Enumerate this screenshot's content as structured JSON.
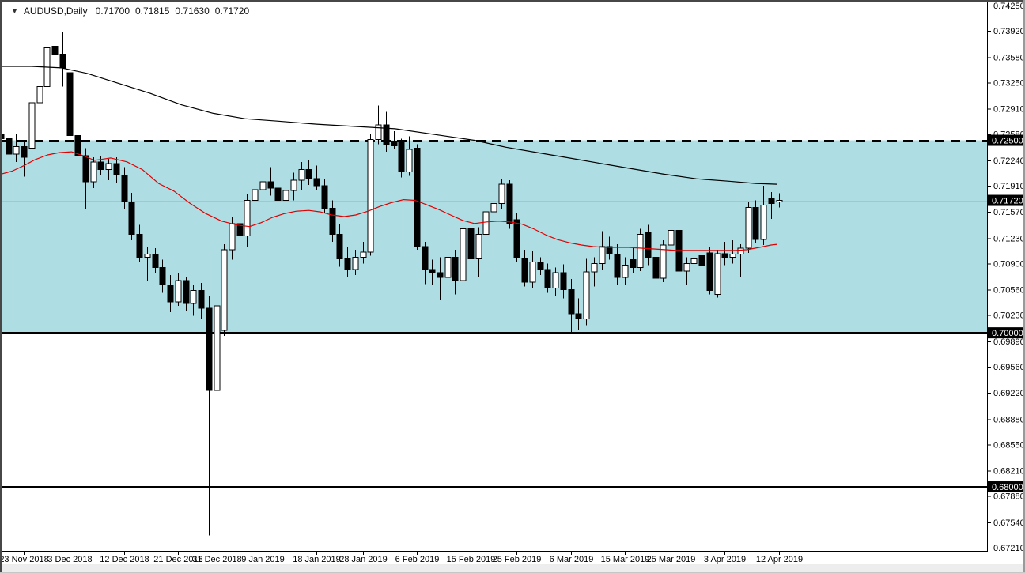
{
  "header": {
    "dropdown_icon": "▼",
    "symbol": "AUDUSD,Daily",
    "open": "0.71700",
    "high": "0.71815",
    "low": "0.71630",
    "close": "0.71720"
  },
  "colors": {
    "background": "#ffffff",
    "band_fill": "#aedee3",
    "bull_body": "#ffffff",
    "bear_body": "#000000",
    "candle_border": "#000000",
    "ma_fast": "#e00000",
    "ma_slow": "#000000",
    "object_line": "#000000",
    "current_price_line": "#bdbdbd",
    "badge_bg": "#000000",
    "badge_text": "#ffffff",
    "axis_text": "#000000",
    "footer": "#ededed"
  },
  "axes": {
    "price_min": 0.6721,
    "price_max": 0.7425,
    "price_ticks": [
      "0.74250",
      "0.73920",
      "0.73580",
      "0.73250",
      "0.72910",
      "0.72580",
      "0.72240",
      "0.71910",
      "0.71570",
      "0.71230",
      "0.70900",
      "0.70560",
      "0.70230",
      "0.69890",
      "0.69560",
      "0.69220",
      "0.68880",
      "0.68550",
      "0.68210",
      "0.67880",
      "0.67540",
      "0.67210"
    ],
    "price_badges": [
      {
        "label": "0.72500",
        "price": 0.725
      },
      {
        "label": "0.71720",
        "price": 0.7172,
        "current": true
      },
      {
        "label": "0.70000",
        "price": 0.7
      },
      {
        "label": "0.68000",
        "price": 0.68
      }
    ],
    "date_ticks": [
      {
        "label": "23 Nov 2018",
        "bar": 3
      },
      {
        "label": "3 Dec 2018",
        "bar": 9
      },
      {
        "label": "12 Dec 2018",
        "bar": 16
      },
      {
        "label": "21 Dec 2018",
        "bar": 23
      },
      {
        "label": "31 Dec 2018",
        "bar": 28
      },
      {
        "label": "9 Jan 2019",
        "bar": 34
      },
      {
        "label": "18 Jan 2019",
        "bar": 41
      },
      {
        "label": "28 Jan 2019",
        "bar": 47
      },
      {
        "label": "6 Feb 2019",
        "bar": 54
      },
      {
        "label": "15 Feb 2019",
        "bar": 61
      },
      {
        "label": "25 Feb 2019",
        "bar": 67
      },
      {
        "label": "6 Mar 2019",
        "bar": 74
      },
      {
        "label": "15 Mar 2019",
        "bar": 81
      },
      {
        "label": "25 Mar 2019",
        "bar": 87
      },
      {
        "label": "3 Apr 2019",
        "bar": 94
      },
      {
        "label": "12 Apr 2019",
        "bar": 101
      }
    ]
  },
  "chart_data": {
    "type": "candlestick",
    "symbol": "AUDUSD",
    "timeframe": "Daily",
    "title": "AUDUSD,Daily 0.71700 0.71815 0.71630 0.71720",
    "ylim": [
      0.6721,
      0.7425
    ],
    "grid": false,
    "bar_fields": [
      "date",
      "open",
      "high",
      "low",
      "close"
    ],
    "bars": [
      [
        "20 Nov 2018",
        0.7258,
        0.7272,
        0.724,
        0.7252
      ],
      [
        "21 Nov 2018",
        0.7252,
        0.727,
        0.7225,
        0.7232
      ],
      [
        "22 Nov 2018",
        0.7232,
        0.7258,
        0.7222,
        0.7242
      ],
      [
        "23 Nov 2018",
        0.7242,
        0.725,
        0.7203,
        0.7228
      ],
      [
        "26 Nov 2018",
        0.724,
        0.731,
        0.7222,
        0.7299
      ],
      [
        "27 Nov 2018",
        0.7299,
        0.7332,
        0.729,
        0.732
      ],
      [
        "28 Nov 2018",
        0.732,
        0.738,
        0.7315,
        0.737
      ],
      [
        "29 Nov 2018",
        0.7372,
        0.7393,
        0.7348,
        0.7362
      ],
      [
        "30 Nov 2018",
        0.7362,
        0.739,
        0.732,
        0.7344
      ],
      [
        "3 Dec 2018",
        0.7338,
        0.7348,
        0.724,
        0.7256
      ],
      [
        "4 Dec 2018",
        0.7256,
        0.7268,
        0.7222,
        0.723
      ],
      [
        "5 Dec 2018",
        0.723,
        0.724,
        0.716,
        0.7196
      ],
      [
        "6 Dec 2018",
        0.7196,
        0.7228,
        0.7188,
        0.7222
      ],
      [
        "7 Dec 2018",
        0.7222,
        0.723,
        0.7205,
        0.7212
      ],
      [
        "10 Dec 2018",
        0.7212,
        0.7226,
        0.7198,
        0.722
      ],
      [
        "11 Dec 2018",
        0.722,
        0.7228,
        0.7195,
        0.7205
      ],
      [
        "12 Dec 2018",
        0.7205,
        0.7215,
        0.716,
        0.717
      ],
      [
        "13 Dec 2018",
        0.717,
        0.7182,
        0.712,
        0.7128
      ],
      [
        "14 Dec 2018",
        0.7128,
        0.714,
        0.7092,
        0.7098
      ],
      [
        "17 Dec 2018",
        0.7098,
        0.7112,
        0.7068,
        0.7102
      ],
      [
        "18 Dec 2018",
        0.7102,
        0.711,
        0.7078,
        0.7085
      ],
      [
        "19 Dec 2018",
        0.7085,
        0.7095,
        0.7052,
        0.7062
      ],
      [
        "20 Dec 2018",
        0.7062,
        0.7075,
        0.7027,
        0.704
      ],
      [
        "21 Dec 2018",
        0.704,
        0.7078,
        0.7035,
        0.7068
      ],
      [
        "24 Dec 2018",
        0.7068,
        0.7072,
        0.7028,
        0.7038
      ],
      [
        "26 Dec 2018",
        0.7038,
        0.7062,
        0.7022,
        0.7055
      ],
      [
        "27 Dec 2018",
        0.7055,
        0.7065,
        0.7018,
        0.7032
      ],
      [
        "28 Dec 2018",
        0.7032,
        0.7048,
        0.6737,
        0.6925
      ],
      [
        "31 Dec 2018",
        0.6925,
        0.7045,
        0.6898,
        0.7035
      ],
      [
        "2 Jan 2019",
        0.7003,
        0.7115,
        0.6996,
        0.7108
      ],
      [
        "3 Jan 2019",
        0.7108,
        0.715,
        0.7095,
        0.7142
      ],
      [
        "4 Jan 2019",
        0.7142,
        0.7158,
        0.7116,
        0.7126
      ],
      [
        "7 Jan 2019",
        0.7126,
        0.718,
        0.7112,
        0.7172
      ],
      [
        "8 Jan 2019",
        0.7172,
        0.7235,
        0.7155,
        0.7186
      ],
      [
        "9 Jan 2019",
        0.7186,
        0.7205,
        0.7168,
        0.7196
      ],
      [
        "10 Jan 2019",
        0.7196,
        0.7215,
        0.7178,
        0.7188
      ],
      [
        "11 Jan 2019",
        0.7188,
        0.7202,
        0.716,
        0.7172
      ],
      [
        "14 Jan 2019",
        0.7172,
        0.7195,
        0.7158,
        0.7185
      ],
      [
        "15 Jan 2019",
        0.7185,
        0.7208,
        0.7172,
        0.7198
      ],
      [
        "16 Jan 2019",
        0.7198,
        0.7222,
        0.7186,
        0.7212
      ],
      [
        "17 Jan 2019",
        0.7212,
        0.7225,
        0.7192,
        0.72
      ],
      [
        "18 Jan 2019",
        0.72,
        0.7217,
        0.7185,
        0.7191
      ],
      [
        "21 Jan 2019",
        0.7191,
        0.72,
        0.7155,
        0.7162
      ],
      [
        "22 Jan 2019",
        0.7162,
        0.7172,
        0.7118,
        0.7128
      ],
      [
        "23 Jan 2019",
        0.7128,
        0.7142,
        0.7086,
        0.7096
      ],
      [
        "24 Jan 2019",
        0.7096,
        0.7112,
        0.7073,
        0.7082
      ],
      [
        "25 Jan 2019",
        0.7082,
        0.7108,
        0.7075,
        0.7098
      ],
      [
        "28 Jan 2019",
        0.7098,
        0.7118,
        0.709,
        0.7105
      ],
      [
        "29 Jan 2019",
        0.7105,
        0.7258,
        0.71,
        0.7251
      ],
      [
        "30 Jan 2019",
        0.7251,
        0.7295,
        0.7245,
        0.727
      ],
      [
        "31 Jan 2019",
        0.727,
        0.7287,
        0.7235,
        0.7244
      ],
      [
        "1 Feb 2019",
        0.7248,
        0.7262,
        0.7238,
        0.7243
      ],
      [
        "4 Feb 2019",
        0.7247,
        0.7252,
        0.7202,
        0.7209
      ],
      [
        "5 Feb 2019",
        0.7209,
        0.7255,
        0.7204,
        0.7238
      ],
      [
        "6 Feb 2019",
        0.724,
        0.7245,
        0.7108,
        0.7112
      ],
      [
        "7 Feb 2019",
        0.7112,
        0.7118,
        0.7063,
        0.7082
      ],
      [
        "8 Feb 2019",
        0.7082,
        0.7095,
        0.7062,
        0.7078
      ],
      [
        "11 Feb 2019",
        0.7078,
        0.7098,
        0.7042,
        0.7072
      ],
      [
        "12 Feb 2019",
        0.7072,
        0.7105,
        0.7039,
        0.7098
      ],
      [
        "13 Feb 2019",
        0.7098,
        0.7108,
        0.705,
        0.7068
      ],
      [
        "14 Feb 2019",
        0.7068,
        0.715,
        0.706,
        0.7135
      ],
      [
        "15 Feb 2019",
        0.7135,
        0.7142,
        0.7086,
        0.7096
      ],
      [
        "18 Feb 2019",
        0.7096,
        0.7137,
        0.7073,
        0.7128
      ],
      [
        "19 Feb 2019",
        0.7128,
        0.7162,
        0.712,
        0.7157
      ],
      [
        "20 Feb 2019",
        0.7157,
        0.7175,
        0.7138,
        0.7168
      ],
      [
        "21 Feb 2019",
        0.7168,
        0.72,
        0.716,
        0.7193
      ],
      [
        "22 Feb 2019",
        0.7193,
        0.7198,
        0.7135,
        0.7141
      ],
      [
        "25 Feb 2019",
        0.7147,
        0.7155,
        0.7092,
        0.7097
      ],
      [
        "26 Feb 2019",
        0.7097,
        0.7108,
        0.706,
        0.7066
      ],
      [
        "27 Feb 2019",
        0.7066,
        0.7106,
        0.7058,
        0.7092
      ],
      [
        "28 Feb 2019",
        0.7092,
        0.7098,
        0.7075,
        0.7082
      ],
      [
        "1 Mar 2019",
        0.7082,
        0.709,
        0.7052,
        0.7058
      ],
      [
        "4 Mar 2019",
        0.7058,
        0.7085,
        0.7048,
        0.7078
      ],
      [
        "5 Mar 2019",
        0.7078,
        0.7089,
        0.7045,
        0.7056
      ],
      [
        "6 Mar 2019",
        0.7056,
        0.707,
        0.6999,
        0.7025
      ],
      [
        "7 Mar 2019",
        0.7025,
        0.7045,
        0.7003,
        0.7018
      ],
      [
        "8 Mar 2019",
        0.7018,
        0.7096,
        0.701,
        0.7079
      ],
      [
        "11 Mar 2019",
        0.7079,
        0.7098,
        0.706,
        0.709
      ],
      [
        "12 Mar 2019",
        0.709,
        0.7132,
        0.7082,
        0.7112
      ],
      [
        "13 Mar 2019",
        0.7112,
        0.7125,
        0.7095,
        0.7102
      ],
      [
        "14 Mar 2019",
        0.7102,
        0.7115,
        0.7062,
        0.7072
      ],
      [
        "15 Mar 2019",
        0.7072,
        0.7098,
        0.7062,
        0.7088
      ],
      [
        "18 Mar 2019",
        0.7095,
        0.711,
        0.7078,
        0.7085
      ],
      [
        "19 Mar 2019",
        0.7085,
        0.7135,
        0.708,
        0.7128
      ],
      [
        "20 Mar 2019",
        0.713,
        0.714,
        0.7088,
        0.7098
      ],
      [
        "21 Mar 2019",
        0.7098,
        0.7106,
        0.7064,
        0.7071
      ],
      [
        "22 Mar 2019",
        0.7071,
        0.712,
        0.7066,
        0.7114
      ],
      [
        "25 Mar 2019",
        0.7114,
        0.7138,
        0.7108,
        0.7133
      ],
      [
        "26 Mar 2019",
        0.7133,
        0.714,
        0.7072,
        0.708
      ],
      [
        "27 Mar 2019",
        0.708,
        0.7098,
        0.7062,
        0.709
      ],
      [
        "28 Mar 2019",
        0.709,
        0.7102,
        0.7058,
        0.7096
      ],
      [
        "29 Mar 2019",
        0.71,
        0.7108,
        0.708,
        0.7088
      ],
      [
        "1 Apr 2019",
        0.7104,
        0.7112,
        0.705,
        0.7055
      ],
      [
        "2 Apr 2019",
        0.705,
        0.7108,
        0.7046,
        0.7103
      ],
      [
        "3 Apr 2019",
        0.7103,
        0.7118,
        0.7088,
        0.7098
      ],
      [
        "4 Apr 2019",
        0.7098,
        0.712,
        0.709,
        0.7102
      ],
      [
        "5 Apr 2019",
        0.7102,
        0.7115,
        0.7072,
        0.711
      ],
      [
        "8 Apr 2019",
        0.711,
        0.717,
        0.7104,
        0.7163
      ],
      [
        "9 Apr 2019",
        0.7163,
        0.7172,
        0.7116,
        0.7121
      ],
      [
        "10 Apr 2019",
        0.7121,
        0.7191,
        0.7114,
        0.7166
      ],
      [
        "11 Apr 2019",
        0.7174,
        0.7183,
        0.7148,
        0.7168
      ],
      [
        "12 Apr 2019",
        0.717,
        0.71815,
        0.7163,
        0.7172
      ]
    ],
    "overlays": [
      {
        "name": "ma-fast-red",
        "color": "#e00000",
        "point_fields": [
          "bar",
          "price"
        ],
        "points": [
          [
            0,
            0.7206
          ],
          [
            1.5,
            0.721
          ],
          [
            3,
            0.7217
          ],
          [
            4.5,
            0.7225
          ],
          [
            6.1,
            0.7231
          ],
          [
            7.6,
            0.7234
          ],
          [
            9.2,
            0.7235
          ],
          [
            10.7,
            0.723
          ],
          [
            12.2,
            0.7224
          ],
          [
            14.3,
            0.7227
          ],
          [
            16.4,
            0.7222
          ],
          [
            18.4,
            0.7212
          ],
          [
            20.5,
            0.7194
          ],
          [
            22.5,
            0.7184
          ],
          [
            24.6,
            0.7168
          ],
          [
            26.6,
            0.7155
          ],
          [
            28.7,
            0.7145
          ],
          [
            30.7,
            0.714
          ],
          [
            32.3,
            0.7138
          ],
          [
            33.8,
            0.7143
          ],
          [
            35.3,
            0.715
          ],
          [
            36.9,
            0.7155
          ],
          [
            38.4,
            0.7158
          ],
          [
            40,
            0.7159
          ],
          [
            41.5,
            0.7157
          ],
          [
            43,
            0.7153
          ],
          [
            44.6,
            0.7151
          ],
          [
            46.1,
            0.7153
          ],
          [
            47.7,
            0.7158
          ],
          [
            49.2,
            0.7164
          ],
          [
            50.7,
            0.7169
          ],
          [
            52.3,
            0.7173
          ],
          [
            53.8,
            0.7172
          ],
          [
            55.4,
            0.7166
          ],
          [
            56.9,
            0.716
          ],
          [
            58.4,
            0.7153
          ],
          [
            60,
            0.7146
          ],
          [
            61.5,
            0.7142
          ],
          [
            63.1,
            0.7144
          ],
          [
            64.6,
            0.7145
          ],
          [
            66.1,
            0.7144
          ],
          [
            67.7,
            0.7141
          ],
          [
            69.2,
            0.7135
          ],
          [
            70.8,
            0.7127
          ],
          [
            72.3,
            0.7121
          ],
          [
            73.8,
            0.7117
          ],
          [
            75.4,
            0.7114
          ],
          [
            76.9,
            0.7112
          ],
          [
            78.5,
            0.7111
          ],
          [
            81.5,
            0.7111
          ],
          [
            84.6,
            0.7109
          ],
          [
            87.7,
            0.7107
          ],
          [
            90.8,
            0.7107
          ],
          [
            93.9,
            0.7107
          ],
          [
            95.4,
            0.7107
          ],
          [
            96.9,
            0.7108
          ],
          [
            98.5,
            0.7111
          ],
          [
            100,
            0.7114
          ],
          [
            100.8,
            0.7115
          ]
        ]
      },
      {
        "name": "ma-slow-black",
        "color": "#000000",
        "point_fields": [
          "bar",
          "price"
        ],
        "points": [
          [
            0,
            0.7346
          ],
          [
            4,
            0.7346
          ],
          [
            7.9,
            0.7344
          ],
          [
            11.2,
            0.7337
          ],
          [
            15.3,
            0.7324
          ],
          [
            19.4,
            0.7311
          ],
          [
            23.5,
            0.7296
          ],
          [
            27.6,
            0.7285
          ],
          [
            31.7,
            0.7278
          ],
          [
            35.9,
            0.7275
          ],
          [
            41,
            0.7271
          ],
          [
            46.1,
            0.7268
          ],
          [
            51.2,
            0.7265
          ],
          [
            57.4,
            0.7256
          ],
          [
            61.5,
            0.725
          ],
          [
            65.6,
            0.7241
          ],
          [
            69.7,
            0.7234
          ],
          [
            73.8,
            0.7227
          ],
          [
            77.9,
            0.722
          ],
          [
            82,
            0.7213
          ],
          [
            86.1,
            0.7206
          ],
          [
            90.3,
            0.72
          ],
          [
            94.4,
            0.7197
          ],
          [
            98,
            0.7194
          ],
          [
            100.8,
            0.7193
          ]
        ]
      }
    ],
    "objects": [
      {
        "type": "band",
        "name": "support-resistance-zone",
        "price_top": 0.725,
        "price_bottom": 0.7,
        "fill": "#aedee3"
      },
      {
        "type": "hline",
        "name": "resistance-line",
        "price": 0.725,
        "style": "dashed",
        "color": "#000000",
        "width": 3
      },
      {
        "type": "hline",
        "name": "support-line",
        "price": 0.7,
        "style": "solid",
        "color": "#000000",
        "width": 3
      },
      {
        "type": "hline",
        "name": "lower-support-line",
        "price": 0.68,
        "style": "solid",
        "color": "#000000",
        "width": 3
      },
      {
        "type": "hline",
        "name": "current-price-line",
        "price": 0.7172,
        "style": "solid",
        "color": "#bdbdbd",
        "width": 1
      }
    ]
  }
}
